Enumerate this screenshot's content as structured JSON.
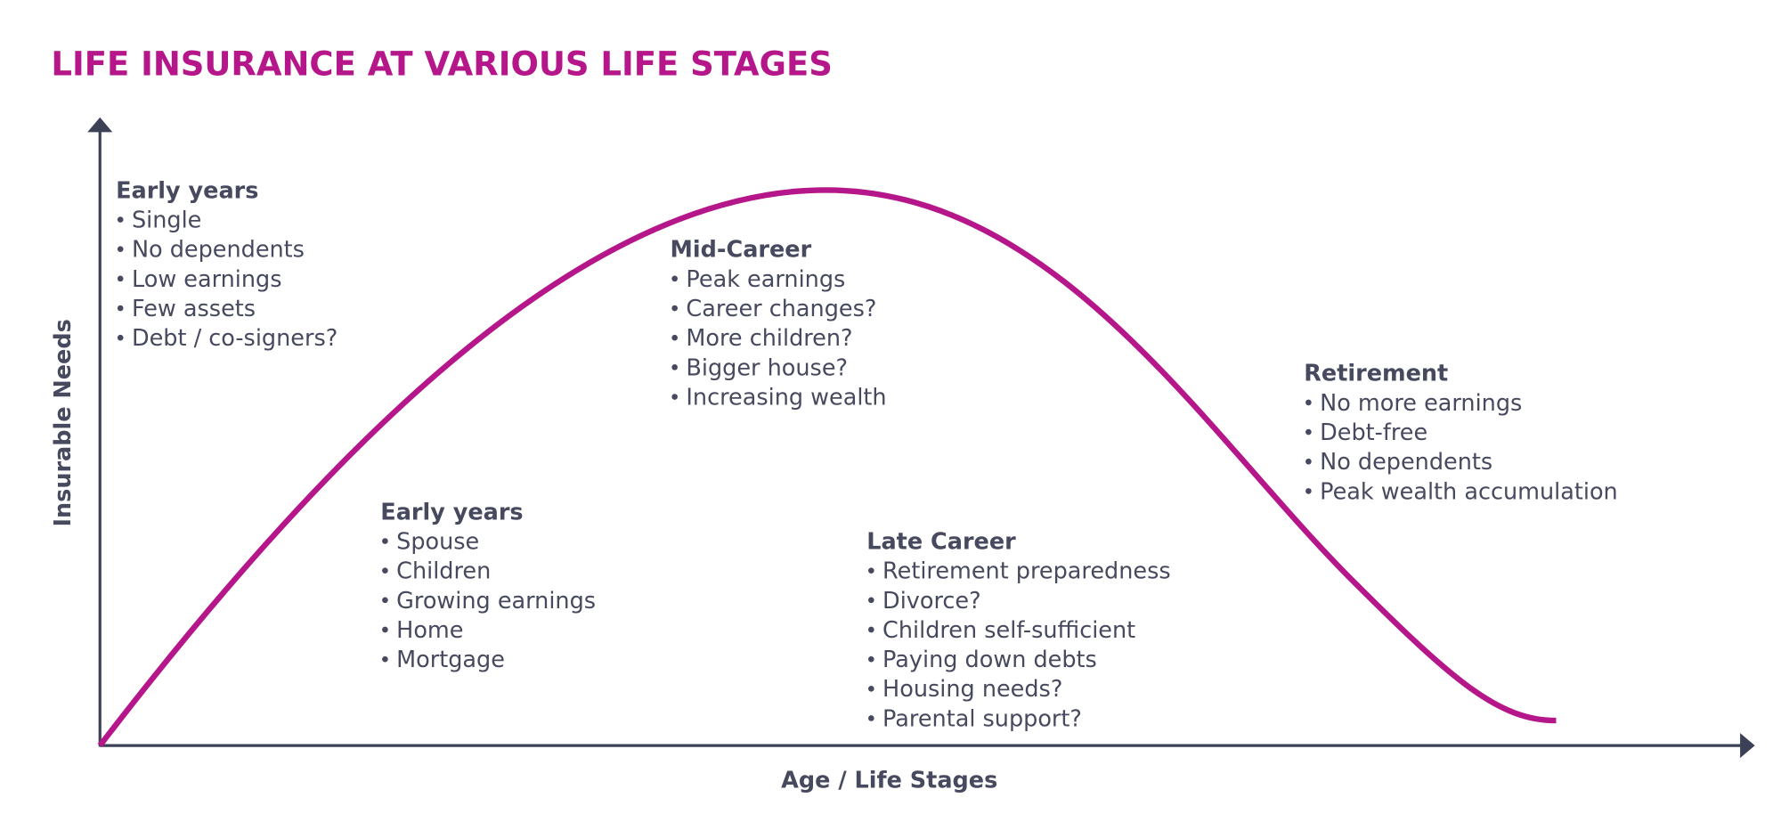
{
  "title": "LIFE INSURANCE AT VARIOUS LIFE STAGES",
  "y_axis_label": "Insurable Needs",
  "x_axis_label": "Age / Life Stages",
  "stages": [
    {
      "heading": "Early years",
      "items": [
        "Single",
        "No dependents",
        "Low earnings",
        "Few assets",
        "Debt / co-signers?"
      ]
    },
    {
      "heading": "Early years",
      "items": [
        "Spouse",
        "Children",
        "Growing earnings",
        "Home",
        "Mortgage"
      ]
    },
    {
      "heading": "Mid-Career",
      "items": [
        "Peak earnings",
        "Career changes?",
        "More children?",
        "Bigger house?",
        "Increasing wealth"
      ]
    },
    {
      "heading": "Late Career",
      "items": [
        "Retirement preparedness",
        "Divorce?",
        "Children self-sufficient",
        "Paying down debts",
        "Housing needs?",
        "Parental support?"
      ]
    },
    {
      "heading": "Retirement",
      "items": [
        "No more earnings",
        "Debt-free",
        "No dependents",
        "Peak wealth accumulation"
      ]
    }
  ]
}
